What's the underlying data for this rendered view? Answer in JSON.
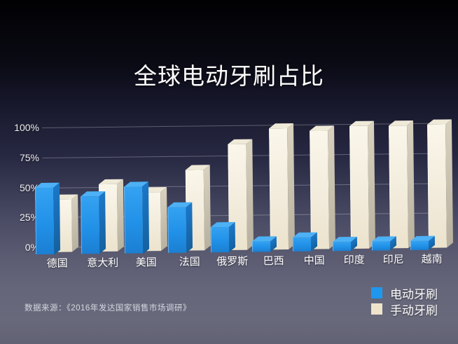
{
  "title": "全球电动牙刷占比",
  "source_note": "数据来源：《2016年发达国家销售市场调研》",
  "legend": [
    {
      "label": "电动牙刷",
      "color": "#1f97ee"
    },
    {
      "label": "手动牙刷",
      "color": "#efe3cc"
    }
  ],
  "chart_data": {
    "type": "bar",
    "title": "全球电动牙刷占比",
    "categories": [
      "德国",
      "意大利",
      "美国",
      "法国",
      "俄罗斯",
      "巴西",
      "中国",
      "印度",
      "印尼",
      "越南"
    ],
    "series": [
      {
        "name": "电动牙刷",
        "color": "#2196ee",
        "values": [
          50,
          42,
          50,
          32,
          15,
          3,
          6,
          2,
          2,
          2
        ]
      },
      {
        "name": "手动牙刷",
        "color": "#f2ecdb",
        "values": [
          40,
          52,
          45,
          63,
          84,
          97,
          95,
          98,
          98,
          99
        ]
      }
    ],
    "xlabel": "",
    "ylabel": "",
    "ylim": [
      0,
      100
    ],
    "yticks": [
      "0%",
      "25%",
      "50%",
      "75%",
      "100%"
    ],
    "grid": true,
    "style": "3d",
    "legend_position": "bottom-right"
  }
}
